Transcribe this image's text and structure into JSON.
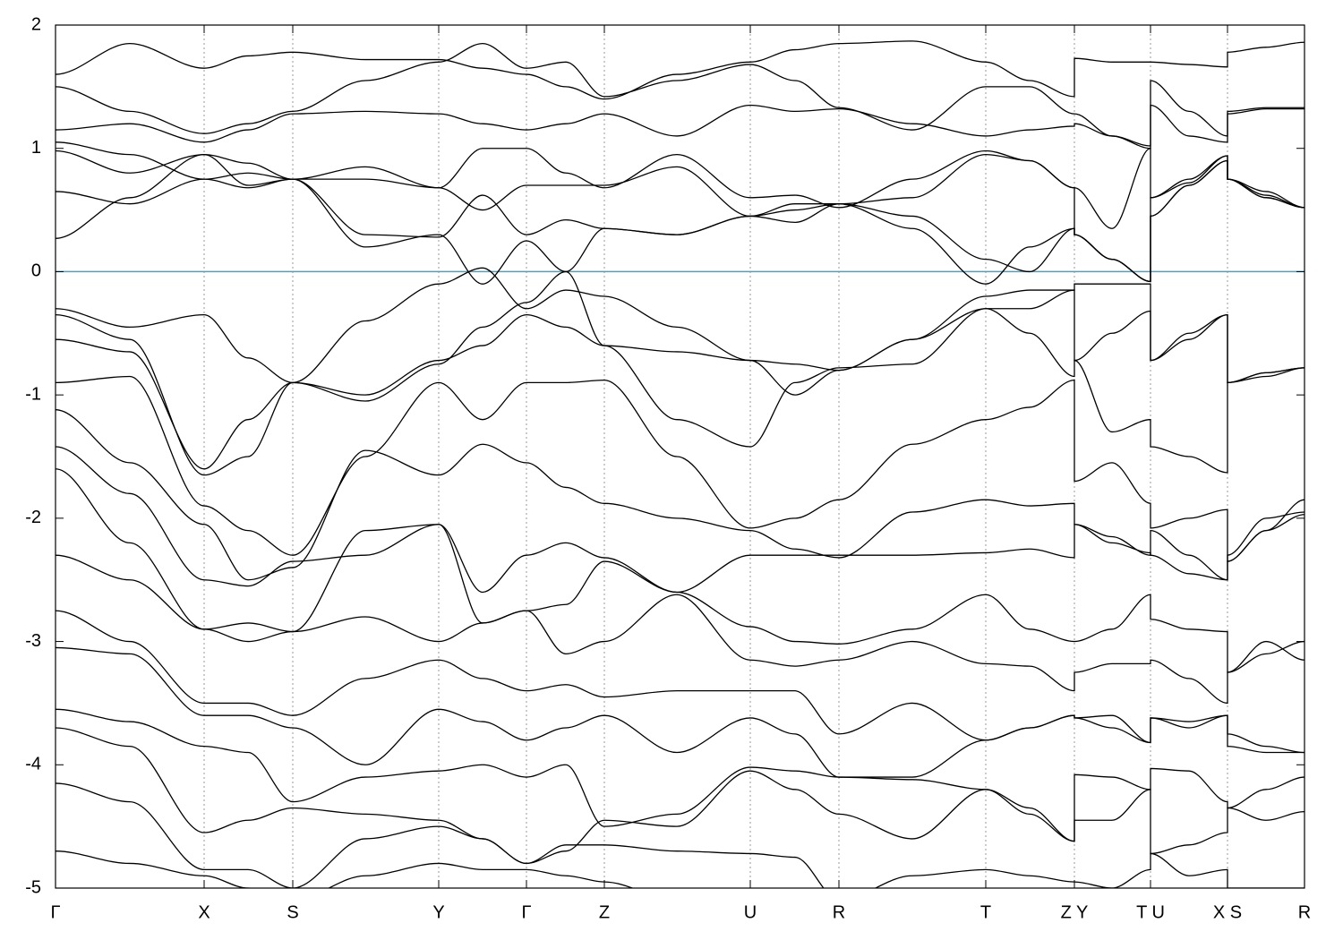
{
  "chart_data": {
    "type": "line",
    "color": "#000000",
    "fermi_color": "#3fa7c4",
    "fermi_level": 0,
    "grid": true,
    "xlim": [
      0,
      1395
    ],
    "ylim": [
      -5,
      2
    ],
    "yticks": [
      -5,
      -4,
      -3,
      -2,
      -1,
      0,
      1,
      2
    ],
    "xticks": [
      {
        "value": 0,
        "label": "Γ"
      },
      {
        "value": 166,
        "label": "X"
      },
      {
        "value": 265,
        "label": "S"
      },
      {
        "value": 428,
        "label": "Y"
      },
      {
        "value": 526,
        "label": "Γ"
      },
      {
        "value": 613,
        "label": "Z"
      },
      {
        "value": 776,
        "label": "U"
      },
      {
        "value": 875,
        "label": "R"
      },
      {
        "value": 1039,
        "label": "T"
      },
      {
        "value": 1138,
        "label": "Z Y"
      },
      {
        "value": 1223,
        "label": "T U"
      },
      {
        "value": 1309,
        "label": "X S"
      },
      {
        "value": 1395,
        "label": "R"
      }
    ],
    "x": [
      0,
      83,
      166,
      215,
      265,
      346,
      428,
      477,
      526,
      570,
      613,
      694,
      776,
      826,
      875,
      957,
      1039,
      1088,
      1138,
      1138,
      1180,
      1223,
      1223,
      1266,
      1309,
      1309,
      1352,
      1395
    ],
    "series": [
      {
        "values": [
          1.6,
          1.85,
          1.65,
          1.75,
          1.78,
          1.72,
          1.72,
          1.65,
          1.6,
          1.5,
          1.4,
          1.6,
          1.7,
          1.8,
          1.85,
          1.87,
          1.7,
          1.55,
          1.42,
          1.73,
          1.7,
          1.7,
          1.7,
          1.68,
          1.66,
          1.78,
          1.82,
          1.86
        ]
      },
      {
        "values": [
          1.5,
          1.3,
          1.12,
          1.2,
          1.3,
          1.55,
          1.7,
          1.85,
          1.65,
          1.7,
          1.42,
          1.55,
          1.68,
          1.55,
          1.33,
          1.15,
          1.5,
          1.5,
          1.28,
          1.28,
          1.1,
          1.02,
          1.55,
          1.3,
          1.1,
          1.3,
          1.33,
          1.33
        ]
      },
      {
        "values": [
          1.15,
          1.2,
          1.05,
          1.15,
          1.28,
          1.3,
          1.28,
          1.2,
          1.15,
          1.2,
          1.28,
          1.1,
          1.35,
          1.3,
          1.32,
          1.2,
          1.1,
          1.15,
          1.18,
          1.2,
          1.1,
          1.0,
          1.35,
          1.1,
          1.05,
          1.28,
          1.32,
          1.32
        ]
      },
      {
        "values": [
          1.05,
          0.95,
          0.75,
          0.68,
          0.75,
          0.75,
          0.68,
          1.0,
          1.0,
          0.8,
          0.68,
          0.95,
          0.6,
          0.62,
          0.52,
          0.75,
          0.98,
          0.9,
          0.68,
          0.3,
          0.1,
          -0.08,
          0.6,
          0.75,
          0.94,
          0.75,
          0.65,
          0.52
        ]
      },
      {
        "values": [
          0.98,
          0.8,
          0.95,
          0.88,
          0.75,
          0.85,
          0.68,
          0.5,
          0.7,
          0.7,
          0.7,
          0.85,
          0.45,
          0.55,
          0.55,
          0.45,
          0.1,
          0.0,
          0.35,
          0.3,
          0.1,
          -0.08,
          0.45,
          0.7,
          0.9,
          0.75,
          0.6,
          0.52
        ]
      },
      {
        "values": [
          0.65,
          0.55,
          0.75,
          0.8,
          0.75,
          0.3,
          0.28,
          0.62,
          0.3,
          0.42,
          0.35,
          0.3,
          0.45,
          0.4,
          0.55,
          0.35,
          -0.1,
          0.2,
          0.35,
          0.3,
          0.1,
          -0.08,
          0.45,
          0.7,
          0.9,
          0.75,
          0.6,
          0.52
        ]
      },
      {
        "values": [
          0.27,
          0.6,
          0.95,
          0.7,
          0.75,
          0.2,
          0.3,
          -0.1,
          0.25,
          0.0,
          0.35,
          0.3,
          0.45,
          0.5,
          0.55,
          0.6,
          0.95,
          0.9,
          0.68,
          0.68,
          0.35,
          1.0,
          0.6,
          0.72,
          0.94,
          0.75,
          0.62,
          0.52
        ]
      },
      {
        "values": [
          -0.3,
          -0.45,
          -0.35,
          -0.7,
          -0.9,
          -0.4,
          -0.1,
          0.03,
          -0.3,
          -0.15,
          -0.2,
          -0.45,
          -0.72,
          -0.75,
          -0.8,
          -0.55,
          -0.2,
          -0.15,
          -0.15,
          -0.1,
          -0.1,
          -0.1,
          -0.72,
          -0.55,
          -0.35,
          -0.9,
          -0.82,
          -0.78
        ]
      },
      {
        "values": [
          -0.35,
          -0.55,
          -1.65,
          -1.5,
          -0.9,
          -1.05,
          -0.75,
          -0.45,
          -0.25,
          0.0,
          -0.6,
          -0.65,
          -0.72,
          -1.0,
          -0.8,
          -0.55,
          -0.3,
          -0.3,
          -0.15,
          -0.72,
          -0.5,
          -0.32,
          -0.72,
          -0.5,
          -0.35,
          -0.9,
          -0.85,
          -0.78
        ]
      },
      {
        "values": [
          -0.55,
          -0.65,
          -1.6,
          -1.2,
          -0.9,
          -1.0,
          -0.72,
          -0.6,
          -0.35,
          -0.45,
          -0.6,
          -1.2,
          -1.42,
          -0.9,
          -0.78,
          -0.75,
          -0.3,
          -0.5,
          -0.85,
          -0.72,
          -1.3,
          -1.2,
          -1.42,
          -1.5,
          -1.63,
          -0.9,
          -0.82,
          -0.78
        ]
      },
      {
        "values": [
          -0.9,
          -0.85,
          -1.9,
          -2.1,
          -2.3,
          -1.5,
          -0.9,
          -1.2,
          -0.9,
          -0.9,
          -0.88,
          -1.5,
          -2.08,
          -2.0,
          -1.85,
          -1.4,
          -1.2,
          -1.1,
          -0.88,
          -1.7,
          -1.55,
          -1.88,
          -2.08,
          -2.0,
          -1.93,
          -2.35,
          -2.1,
          -1.85
        ]
      },
      {
        "values": [
          -1.12,
          -1.55,
          -2.05,
          -2.5,
          -2.4,
          -1.45,
          -1.65,
          -1.4,
          -1.55,
          -1.75,
          -1.88,
          -2.0,
          -2.1,
          -2.25,
          -2.32,
          -1.95,
          -1.85,
          -1.9,
          -1.88,
          -2.05,
          -2.15,
          -2.3,
          -2.1,
          -2.3,
          -2.5,
          -2.3,
          -2.0,
          -1.95
        ]
      },
      {
        "values": [
          -1.42,
          -1.8,
          -2.5,
          -2.55,
          -2.35,
          -2.3,
          -2.05,
          -2.6,
          -2.3,
          -2.2,
          -2.32,
          -2.6,
          -2.3,
          -2.3,
          -2.3,
          -2.3,
          -2.28,
          -2.25,
          -2.32,
          -2.05,
          -2.2,
          -2.28,
          -2.3,
          -2.45,
          -2.5,
          -2.35,
          -2.1,
          -1.97
        ]
      },
      {
        "values": [
          -1.6,
          -2.2,
          -2.9,
          -2.85,
          -2.92,
          -2.1,
          -2.05,
          -2.85,
          -2.75,
          -2.7,
          -2.35,
          -2.6,
          -2.88,
          -3.0,
          -3.02,
          -2.9,
          -2.62,
          -2.9,
          -3.0,
          -3.0,
          -2.9,
          -2.62,
          -2.82,
          -2.9,
          -2.92,
          -3.25,
          -3.1,
          -3.0
        ]
      },
      {
        "values": [
          -2.3,
          -2.5,
          -2.9,
          -3.0,
          -2.92,
          -2.8,
          -3.0,
          -2.85,
          -2.75,
          -3.1,
          -3.0,
          -2.62,
          -3.15,
          -3.2,
          -3.15,
          -3.0,
          -3.18,
          -3.2,
          -3.4,
          -3.25,
          -3.18,
          -3.18,
          -3.15,
          -3.3,
          -3.5,
          -3.25,
          -3.0,
          -3.15
        ]
      },
      {
        "values": [
          -2.75,
          -3.0,
          -3.5,
          -3.5,
          -3.6,
          -3.3,
          -3.15,
          -3.3,
          -3.4,
          -3.35,
          -3.45,
          -3.4,
          -3.4,
          -3.4,
          -3.75,
          -3.5,
          -3.8,
          -3.7,
          -3.6,
          -3.62,
          -3.6,
          -3.82,
          -3.62,
          -3.65,
          -3.6,
          -3.75,
          -3.85,
          -3.9
        ]
      },
      {
        "values": [
          -3.05,
          -3.1,
          -3.6,
          -3.6,
          -3.7,
          -4.0,
          -3.55,
          -3.65,
          -3.8,
          -3.7,
          -3.6,
          -3.9,
          -3.62,
          -3.75,
          -4.1,
          -4.1,
          -3.8,
          -3.7,
          -3.6,
          -3.62,
          -3.7,
          -3.82,
          -3.62,
          -3.7,
          -3.6,
          -3.85,
          -3.9,
          -3.9
        ]
      },
      {
        "values": [
          -3.55,
          -3.65,
          -3.85,
          -3.9,
          -4.3,
          -4.1,
          -4.05,
          -4.0,
          -4.1,
          -4.0,
          -4.5,
          -4.4,
          -4.02,
          -4.05,
          -4.1,
          -4.12,
          -4.2,
          -4.4,
          -4.62,
          -4.08,
          -4.1,
          -4.2,
          -4.03,
          -4.05,
          -4.3,
          -4.35,
          -4.2,
          -4.1
        ]
      },
      {
        "values": [
          -3.7,
          -3.85,
          -4.55,
          -4.45,
          -4.35,
          -4.4,
          -4.45,
          -4.6,
          -4.8,
          -4.7,
          -4.45,
          -4.5,
          -4.05,
          -4.2,
          -4.4,
          -4.6,
          -4.2,
          -4.35,
          -4.62,
          -4.45,
          -4.45,
          -4.2,
          -4.72,
          -4.65,
          -4.55,
          -4.35,
          -4.45,
          -4.38
        ]
      },
      {
        "values": [
          -4.15,
          -4.3,
          -4.85,
          -4.85,
          -5.0,
          -4.6,
          -4.5,
          -4.6,
          -4.8,
          -4.65,
          -4.65,
          -4.7,
          -4.72,
          -4.75,
          -5.1,
          -4.9,
          -4.85,
          -4.9,
          -4.95,
          -4.95,
          -5.0,
          -4.85,
          -4.72,
          -4.9,
          -4.85,
          -5.0,
          -5.0,
          -5.0
        ]
      },
      {
        "values": [
          -4.7,
          -4.8,
          -4.9,
          -5.0,
          -5.1,
          -4.9,
          -4.8,
          -4.85,
          -4.85,
          -4.9,
          -4.95,
          -5.1,
          -5.05,
          -5.1,
          -5.1,
          -5.1,
          -5.1,
          -5.1,
          -5.1,
          -5.1,
          -5.1,
          -5.1,
          -5.1,
          -5.1,
          -5.1,
          -5.1,
          -5.1,
          -5.1
        ]
      }
    ]
  }
}
